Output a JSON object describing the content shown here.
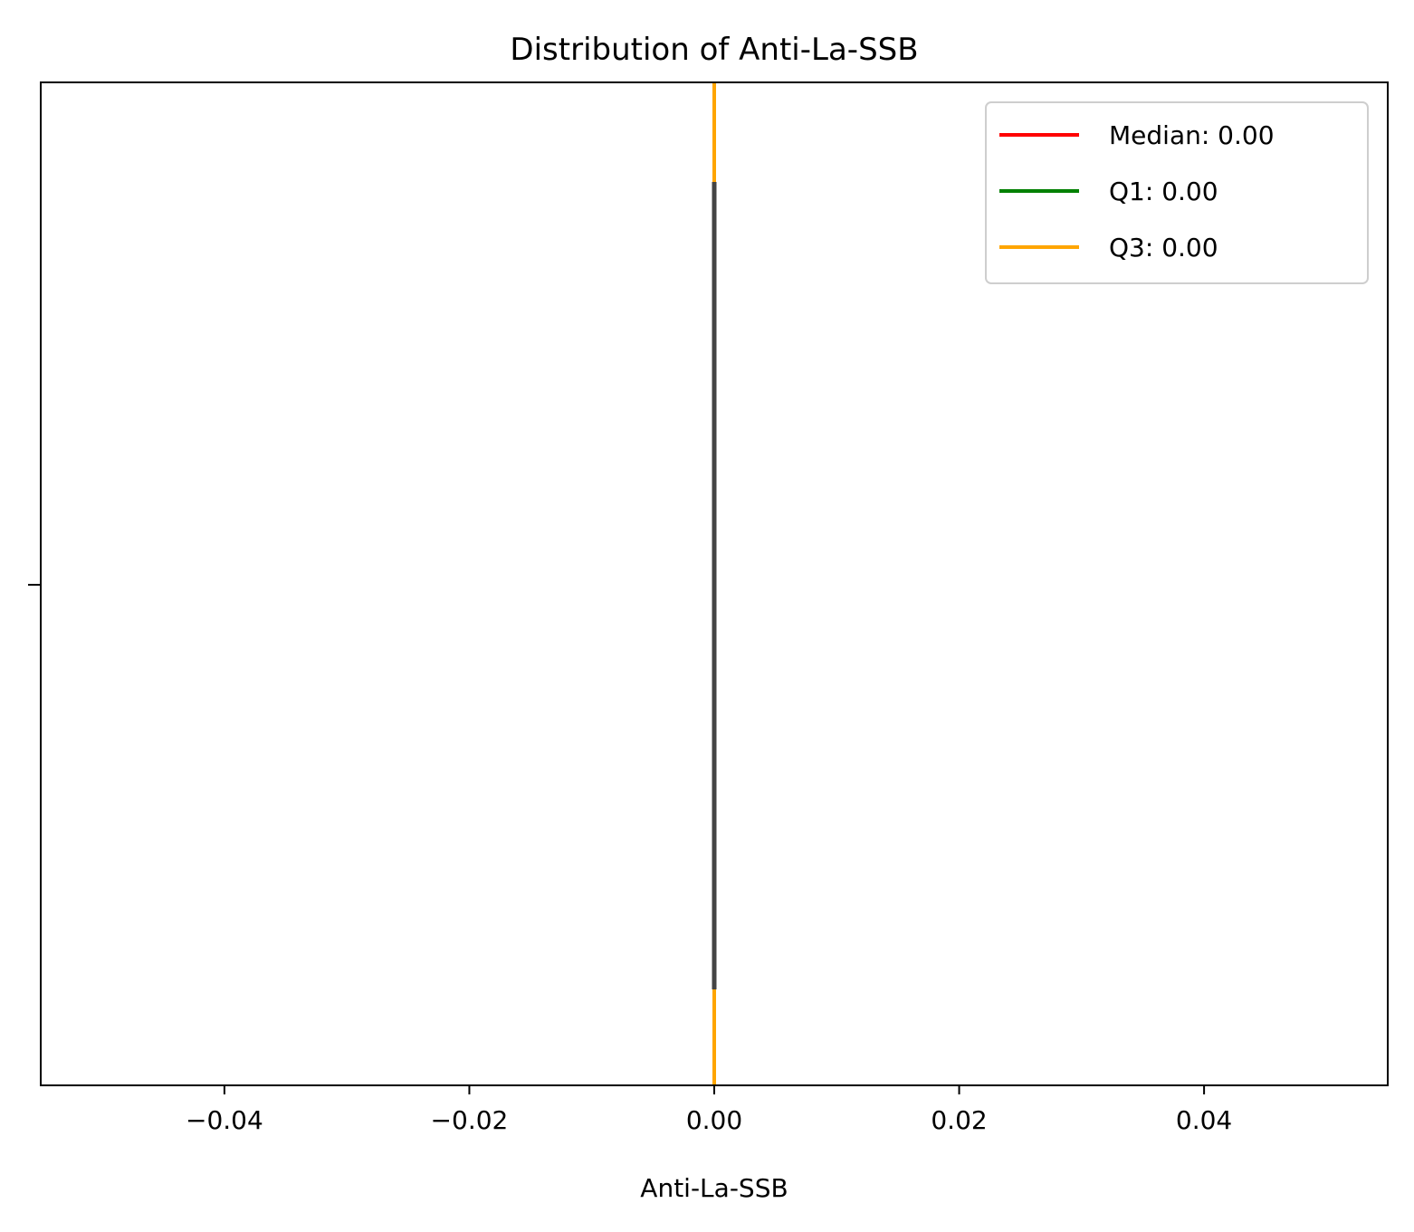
{
  "chart_data": {
    "type": "violin",
    "title": "Distribution of Anti-La-SSB",
    "xlabel": "Anti-La-SSB",
    "ylabel": "",
    "xlim": [
      -0.055,
      0.055
    ],
    "x_ticks": [
      -0.04,
      -0.02,
      0.0,
      0.02,
      0.04
    ],
    "x_tick_labels": [
      "−0.04",
      "−0.02",
      "0.00",
      "0.02",
      "0.04"
    ],
    "y_ticks": [
      0
    ],
    "y_tick_labels": [
      ""
    ],
    "grid": false,
    "distribution": {
      "value": 0.0,
      "box_color": "#444444"
    },
    "lines": [
      {
        "name": "Median: 0.00",
        "x": 0.0,
        "color": "#ff0000"
      },
      {
        "name": "Q1: 0.00",
        "x": 0.0,
        "color": "#008000"
      },
      {
        "name": "Q3: 0.00",
        "x": 0.0,
        "color": "#ffa500"
      }
    ],
    "legend": {
      "placement": "top-right",
      "entries": [
        "Median: 0.00",
        "Q1: 0.00",
        "Q3: 0.00"
      ]
    }
  }
}
